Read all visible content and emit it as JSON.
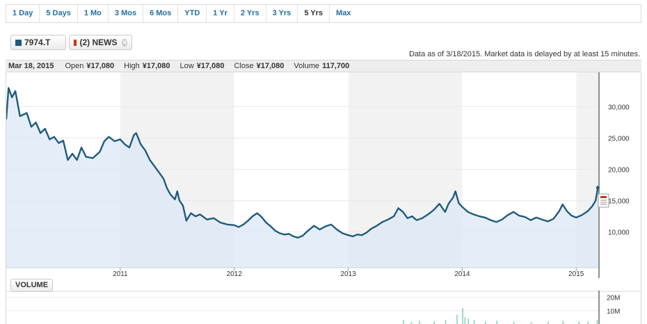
{
  "range_buttons": [
    "1 Day",
    "5 Days",
    "1 Mo",
    "3 Mos",
    "6 Mos",
    "YTD",
    "1 Yr",
    "2 Yrs",
    "3 Yrs",
    "5 Yrs",
    "Max"
  ],
  "active_range": "5 Yrs",
  "tags": {
    "symbol": "7974.T",
    "news": "(2) NEWS",
    "symbol_color": "#1f5a7d",
    "news_color": "#d0311b"
  },
  "as_of": "Data as of 3/18/2015. Market data is delayed by at least 15 minutes.",
  "quote": {
    "date": "Mar 18, 2015",
    "open_label": "Open",
    "open": "¥17,080",
    "high_label": "High",
    "high": "¥17,080",
    "low_label": "Low",
    "low": "¥17,080",
    "close_label": "Close",
    "close": "¥17,080",
    "volume_label": "Volume",
    "volume": "117,700"
  },
  "volume_button": "VOLUME",
  "chart_data": [
    {
      "type": "area",
      "title": "",
      "series": [
        {
          "name": "7974.T",
          "color": "#1f5a7d",
          "points": [
            [
              2010.0,
              28000
            ],
            [
              2010.02,
              33000
            ],
            [
              2010.05,
              31500
            ],
            [
              2010.08,
              32500
            ],
            [
              2010.12,
              28500
            ],
            [
              2010.18,
              29000
            ],
            [
              2010.22,
              26800
            ],
            [
              2010.26,
              27500
            ],
            [
              2010.3,
              25800
            ],
            [
              2010.34,
              26500
            ],
            [
              2010.38,
              24800
            ],
            [
              2010.42,
              25200
            ],
            [
              2010.46,
              24200
            ],
            [
              2010.5,
              24600
            ],
            [
              2010.54,
              21500
            ],
            [
              2010.58,
              22500
            ],
            [
              2010.62,
              21500
            ],
            [
              2010.66,
              23500
            ],
            [
              2010.7,
              22000
            ],
            [
              2010.76,
              21800
            ],
            [
              2010.82,
              22800
            ],
            [
              2010.86,
              24500
            ],
            [
              2010.9,
              25200
            ],
            [
              2010.95,
              24500
            ],
            [
              2011.0,
              24800
            ],
            [
              2011.04,
              24000
            ],
            [
              2011.08,
              23500
            ],
            [
              2011.12,
              25500
            ],
            [
              2011.14,
              25800
            ],
            [
              2011.18,
              24000
            ],
            [
              2011.22,
              23000
            ],
            [
              2011.26,
              21500
            ],
            [
              2011.3,
              20500
            ],
            [
              2011.34,
              19500
            ],
            [
              2011.38,
              18500
            ],
            [
              2011.41,
              17000
            ],
            [
              2011.44,
              16000
            ],
            [
              2011.48,
              15200
            ],
            [
              2011.5,
              16500
            ],
            [
              2011.52,
              15000
            ],
            [
              2011.55,
              14200
            ],
            [
              2011.58,
              11800
            ],
            [
              2011.62,
              13000
            ],
            [
              2011.66,
              12500
            ],
            [
              2011.7,
              12800
            ],
            [
              2011.76,
              12000
            ],
            [
              2011.82,
              12200
            ],
            [
              2011.88,
              11500
            ],
            [
              2011.94,
              11200
            ],
            [
              2012.0,
              11100
            ],
            [
              2012.04,
              10800
            ],
            [
              2012.08,
              11200
            ],
            [
              2012.12,
              11800
            ],
            [
              2012.16,
              12500
            ],
            [
              2012.2,
              13000
            ],
            [
              2012.24,
              12400
            ],
            [
              2012.28,
              11500
            ],
            [
              2012.32,
              10900
            ],
            [
              2012.36,
              10200
            ],
            [
              2012.4,
              9800
            ],
            [
              2012.44,
              9600
            ],
            [
              2012.48,
              9700
            ],
            [
              2012.52,
              9300
            ],
            [
              2012.56,
              9100
            ],
            [
              2012.6,
              9400
            ],
            [
              2012.64,
              10100
            ],
            [
              2012.7,
              11000
            ],
            [
              2012.75,
              10400
            ],
            [
              2012.8,
              10900
            ],
            [
              2012.85,
              11200
            ],
            [
              2012.9,
              10400
            ],
            [
              2012.95,
              9800
            ],
            [
              2013.0,
              9500
            ],
            [
              2013.04,
              9300
            ],
            [
              2013.08,
              9600
            ],
            [
              2013.12,
              9500
            ],
            [
              2013.16,
              9900
            ],
            [
              2013.2,
              10500
            ],
            [
              2013.25,
              11000
            ],
            [
              2013.3,
              11600
            ],
            [
              2013.35,
              12000
            ],
            [
              2013.4,
              12500
            ],
            [
              2013.44,
              13800
            ],
            [
              2013.48,
              13200
            ],
            [
              2013.52,
              12200
            ],
            [
              2013.56,
              12500
            ],
            [
              2013.6,
              11900
            ],
            [
              2013.65,
              12200
            ],
            [
              2013.7,
              12800
            ],
            [
              2013.75,
              13500
            ],
            [
              2013.8,
              14500
            ],
            [
              2013.85,
              13200
            ],
            [
              2013.88,
              14500
            ],
            [
              2013.92,
              15500
            ],
            [
              2013.94,
              16500
            ],
            [
              2013.97,
              14600
            ],
            [
              2014.0,
              14000
            ],
            [
              2014.05,
              13200
            ],
            [
              2014.1,
              12800
            ],
            [
              2014.15,
              12500
            ],
            [
              2014.2,
              12300
            ],
            [
              2014.25,
              11900
            ],
            [
              2014.3,
              11600
            ],
            [
              2014.35,
              12000
            ],
            [
              2014.4,
              12700
            ],
            [
              2014.45,
              13200
            ],
            [
              2014.5,
              12600
            ],
            [
              2014.55,
              12400
            ],
            [
              2014.6,
              11900
            ],
            [
              2014.65,
              12300
            ],
            [
              2014.7,
              12000
            ],
            [
              2014.75,
              11700
            ],
            [
              2014.8,
              12100
            ],
            [
              2014.85,
              13300
            ],
            [
              2014.88,
              14400
            ],
            [
              2014.92,
              13300
            ],
            [
              2014.96,
              12600
            ],
            [
              2015.0,
              12300
            ],
            [
              2015.05,
              12700
            ],
            [
              2015.1,
              13300
            ],
            [
              2015.14,
              14100
            ],
            [
              2015.17,
              15000
            ],
            [
              2015.19,
              17080
            ]
          ]
        }
      ],
      "x_tick_labels": [
        "2011",
        "2012",
        "2013",
        "2014",
        "2015"
      ],
      "x_ticks": [
        2011,
        2012,
        2013,
        2014,
        2015
      ],
      "xlim": [
        2010,
        2015.2
      ],
      "y_tick_labels": [
        "10,000",
        "15,000",
        "20,000",
        "25,000",
        "30,000"
      ],
      "y_ticks": [
        10000,
        15000,
        20000,
        25000,
        30000
      ],
      "ylim": [
        4300,
        35500
      ],
      "shaded_years": [
        [
          2011,
          2012
        ],
        [
          2013,
          2014
        ],
        [
          2015,
          2015.2
        ]
      ],
      "grid": true,
      "line_color": "#1f5a7d",
      "fill_color": "#dce8f5"
    },
    {
      "type": "bar",
      "title": "VOLUME",
      "y_tick_labels": [
        "20M",
        "10M"
      ],
      "y_ticks": [
        20000000,
        10000000
      ],
      "ylim": [
        0,
        25000000
      ],
      "xlim": [
        2010,
        2015.2
      ],
      "series": [
        {
          "name": "Volume",
          "color": "#7ec9b4",
          "points": [
            [
              2013.48,
              3000000
            ],
            [
              2013.55,
              1500000
            ],
            [
              2013.62,
              2500000
            ],
            [
              2013.75,
              2000000
            ],
            [
              2013.85,
              3000000
            ],
            [
              2013.95,
              7000000
            ],
            [
              2014.0,
              12000000
            ],
            [
              2014.02,
              5000000
            ],
            [
              2014.05,
              4000000
            ],
            [
              2014.1,
              3000000
            ],
            [
              2014.2,
              2000000
            ],
            [
              2014.3,
              2500000
            ],
            [
              2014.45,
              1800000
            ],
            [
              2014.6,
              1500000
            ],
            [
              2014.75,
              1700000
            ],
            [
              2014.88,
              2500000
            ],
            [
              2015.02,
              1800000
            ],
            [
              2015.1,
              2000000
            ],
            [
              2015.18,
              3000000
            ]
          ]
        }
      ]
    }
  ]
}
